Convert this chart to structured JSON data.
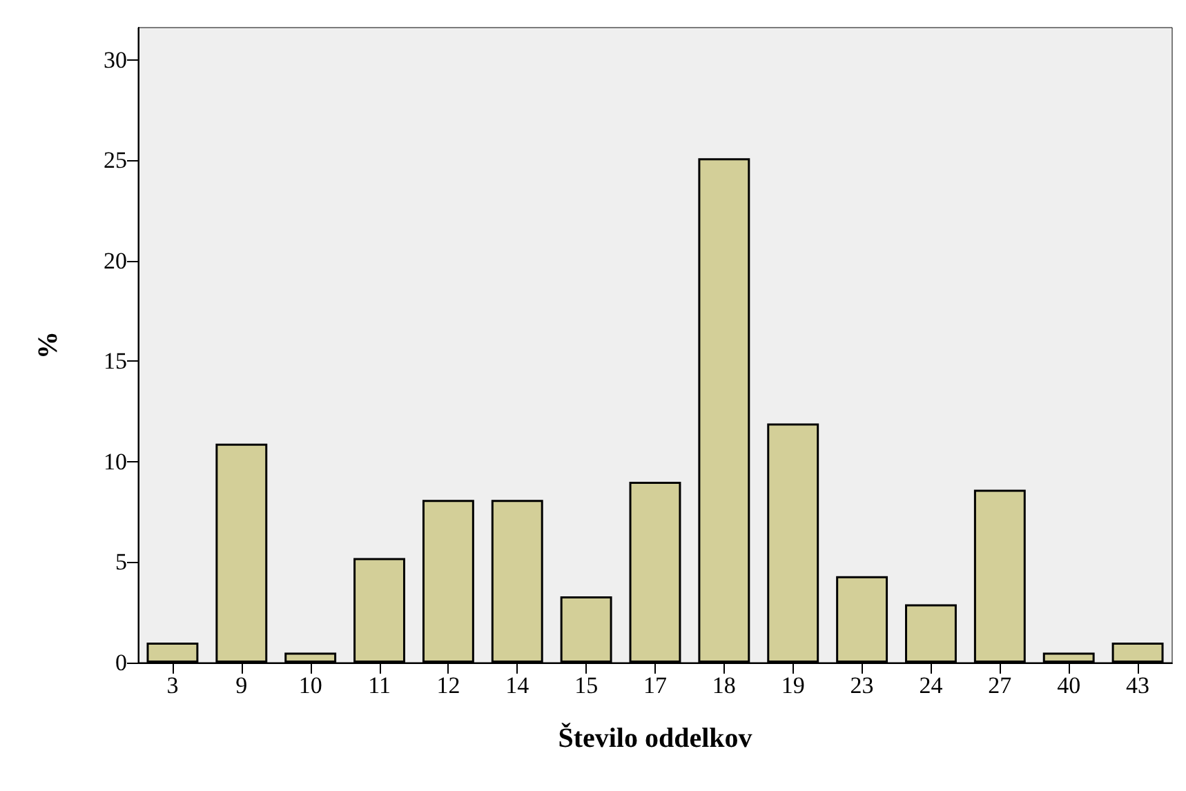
{
  "chart_data": {
    "type": "bar",
    "xlabel": "Število oddelkov",
    "ylabel": "%",
    "categories": [
      "3",
      "9",
      "10",
      "11",
      "12",
      "14",
      "15",
      "17",
      "18",
      "19",
      "23",
      "24",
      "27",
      "40",
      "43"
    ],
    "values": [
      1.0,
      10.9,
      0.5,
      5.2,
      8.1,
      8.1,
      3.3,
      9.0,
      25.1,
      11.9,
      4.3,
      2.9,
      8.6,
      0.5,
      1.0
    ],
    "color": "#d3cf98",
    "ylim": [
      0,
      31.6
    ],
    "yticks": [
      0,
      5,
      10,
      15,
      20,
      25,
      30
    ],
    "grid": false
  }
}
